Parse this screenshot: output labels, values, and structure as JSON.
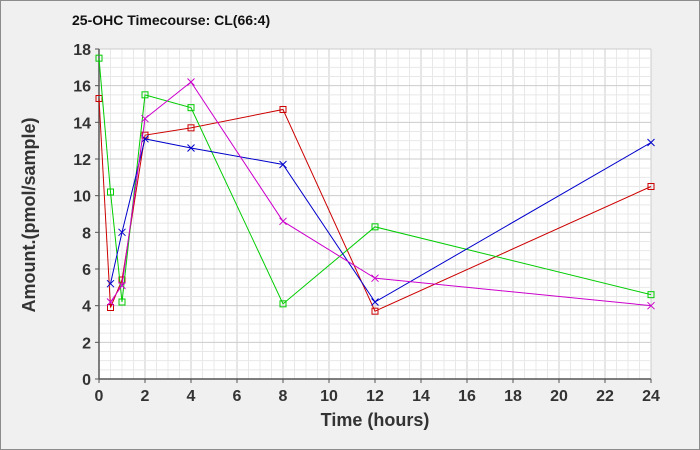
{
  "chart_data": {
    "type": "line",
    "title": "25-OHC Timecourse: CL(66:4)",
    "xlabel": "Time (hours)",
    "ylabel": "Amount.(pmol/sample)",
    "xlim": [
      0,
      24
    ],
    "ylim": [
      0,
      18
    ],
    "xticks": [
      0,
      2,
      4,
      6,
      8,
      10,
      12,
      14,
      16,
      18,
      20,
      22,
      24
    ],
    "yticks": [
      0,
      2,
      4,
      6,
      8,
      10,
      12,
      14,
      16,
      18
    ],
    "grid": true,
    "legend": "none",
    "series": [
      {
        "color": "#cc0000",
        "marker": "square",
        "points": [
          [
            0,
            15.3
          ],
          [
            0.5,
            3.9
          ],
          [
            1,
            5.4
          ],
          [
            2,
            13.3
          ],
          [
            4,
            13.7
          ],
          [
            8,
            14.7
          ],
          [
            12,
            3.7
          ],
          [
            24,
            10.5
          ]
        ]
      },
      {
        "color": "#00cc00",
        "marker": "square",
        "points": [
          [
            0,
            17.5
          ],
          [
            0.5,
            10.2
          ],
          [
            1,
            4.2
          ],
          [
            2,
            15.5
          ],
          [
            4,
            14.8
          ],
          [
            8,
            4.1
          ],
          [
            12,
            8.3
          ],
          [
            24,
            4.6
          ]
        ]
      },
      {
        "color": "#0000cc",
        "marker": "cross",
        "points": [
          [
            0.5,
            5.2
          ],
          [
            1,
            8.0
          ],
          [
            2,
            13.1
          ],
          [
            4,
            12.6
          ],
          [
            8,
            11.7
          ],
          [
            12,
            4.2
          ],
          [
            24,
            12.9
          ]
        ]
      },
      {
        "color": "#cc00cc",
        "marker": "cross",
        "points": [
          [
            0.5,
            4.2
          ],
          [
            1,
            5.1
          ],
          [
            2,
            14.2
          ],
          [
            4,
            16.2
          ],
          [
            8,
            8.6
          ],
          [
            12,
            5.5
          ],
          [
            24,
            4.0
          ]
        ]
      }
    ]
  }
}
